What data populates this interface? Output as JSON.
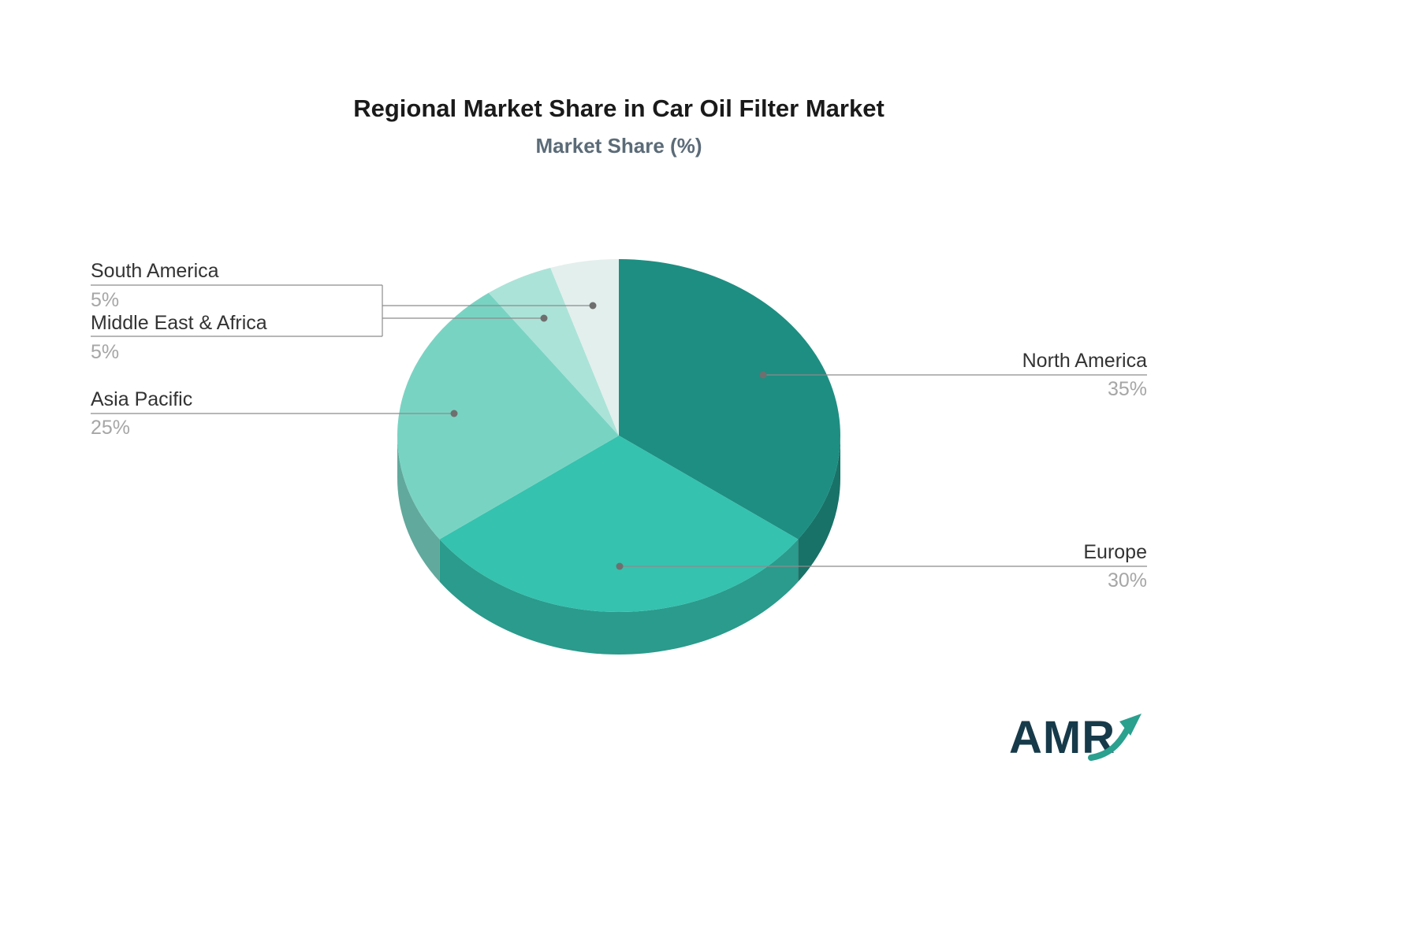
{
  "chart": {
    "title": "Regional Market Share in Car Oil Filter Market",
    "subtitle": "Market Share (%)"
  },
  "chart_data": {
    "type": "pie",
    "title": "Regional Market Share in Car Oil Filter Market",
    "subtitle": "Market Share (%)",
    "unit": "%",
    "direction": "clockwise",
    "start_angle": "12-oclock",
    "legend_position": "callout-labels",
    "slices": [
      {
        "label": "North America",
        "value": 35,
        "display_value": "35%",
        "color": "#1e8e82"
      },
      {
        "label": "Europe",
        "value": 30,
        "display_value": "30%",
        "color": "#35c2af"
      },
      {
        "label": "Asia Pacific",
        "value": 25,
        "display_value": "25%",
        "color": "#79d3c3"
      },
      {
        "label": "Middle East & Africa",
        "value": 5,
        "display_value": "5%",
        "color": "#abe3d8"
      },
      {
        "label": "South America",
        "value": 5,
        "display_value": "5%",
        "color": "#e3efec"
      }
    ],
    "label_text_color": "#333333",
    "value_text_color": "#a6a6a6",
    "leader_line_color": "#8c8c8c",
    "background_color": "#ffffff"
  },
  "logo": {
    "text": "AMR",
    "arrow_color": "#2aa08f"
  }
}
